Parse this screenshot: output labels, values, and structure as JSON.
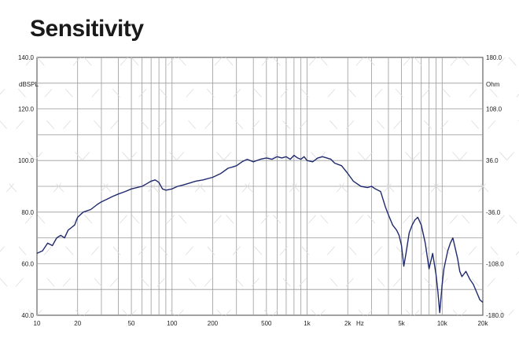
{
  "title": "Sensitivity",
  "chart_data": {
    "type": "line",
    "title": "Sensitivity",
    "x_scale": "log",
    "xlim": [
      10,
      20000
    ],
    "ylim": [
      40,
      140
    ],
    "ylim_right": [
      -180,
      180
    ],
    "grid": true,
    "ylabel": "dBSPL",
    "ylabel_right": "Ohm",
    "xunit": "Hz",
    "line_color": "#1f2a6e",
    "grid_color": "#9a9a9a",
    "x_ticks": [
      {
        "v": 10,
        "label": "10"
      },
      {
        "v": 20,
        "label": "20"
      },
      {
        "v": 50,
        "label": "50"
      },
      {
        "v": 100,
        "label": "100"
      },
      {
        "v": 200,
        "label": "200"
      },
      {
        "v": 500,
        "label": "500"
      },
      {
        "v": 1000,
        "label": "1k"
      },
      {
        "v": 2000,
        "label": "2k"
      },
      {
        "v": 5000,
        "label": "5k"
      },
      {
        "v": 10000,
        "label": "10k"
      },
      {
        "v": 20000,
        "label": "20k"
      }
    ],
    "y_ticks": [
      {
        "v": 40,
        "label": "40.0"
      },
      {
        "v": 60,
        "label": "60.0"
      },
      {
        "v": 80,
        "label": "80.0"
      },
      {
        "v": 100,
        "label": "100.0"
      },
      {
        "v": 120,
        "label": "120.0"
      },
      {
        "v": 140,
        "label": "140.0"
      }
    ],
    "y_ticks_right": [
      {
        "v": -180,
        "label": "-180.0"
      },
      {
        "v": -108,
        "label": "-108.0"
      },
      {
        "v": -36,
        "label": "-36.0"
      },
      {
        "v": 36,
        "label": "36.0"
      },
      {
        "v": 108,
        "label": "108.0"
      },
      {
        "v": 180,
        "label": "180.0"
      }
    ],
    "series": [
      {
        "x": [
          10,
          11,
          12,
          13,
          14,
          15,
          16,
          17,
          18,
          19,
          20,
          22,
          25,
          28,
          30,
          33,
          36,
          40,
          45,
          50,
          55,
          60,
          65,
          70,
          75,
          80,
          85,
          90,
          100,
          110,
          120,
          130,
          150,
          170,
          200,
          230,
          260,
          280,
          300,
          330,
          360,
          400,
          450,
          500,
          550,
          600,
          650,
          700,
          750,
          800,
          850,
          900,
          950,
          1000,
          1100,
          1200,
          1300,
          1400,
          1500,
          1600,
          1800,
          2000,
          2200,
          2500,
          2800,
          3000,
          3200,
          3500,
          3800,
          4000,
          4300,
          4600,
          4800,
          5000,
          5200,
          5400,
          5700,
          6000,
          6300,
          6600,
          7000,
          7500,
          8000,
          8500,
          9000,
          9300,
          9600,
          10000,
          10300,
          10600,
          11000,
          11500,
          12000,
          12500,
          13000,
          13500,
          14000,
          14500,
          15000,
          16000,
          17000,
          18000,
          19000,
          20000
        ],
        "y": [
          64,
          65,
          68,
          67,
          70,
          71,
          70,
          73,
          74,
          75,
          78,
          80,
          81,
          83,
          84,
          85,
          86,
          87,
          88,
          89,
          89.5,
          90,
          91,
          92,
          92.5,
          91.5,
          89,
          88.5,
          89,
          90,
          90.5,
          91,
          92,
          92.5,
          93.5,
          95,
          97,
          97.5,
          98,
          99.5,
          100.5,
          99.5,
          100.5,
          101,
          100.5,
          101.5,
          101,
          101.5,
          100.5,
          102,
          101,
          100.5,
          101.5,
          100,
          99.5,
          101,
          101.5,
          101,
          100.5,
          99,
          98,
          95,
          92,
          90,
          89.5,
          90,
          89,
          88,
          82,
          79,
          75,
          73,
          71,
          67,
          59,
          64,
          72,
          75,
          77,
          78,
          75,
          68,
          58,
          64,
          56,
          49,
          41,
          52,
          58,
          61,
          65,
          68,
          70,
          66,
          62,
          57,
          55,
          56,
          57,
          54,
          52,
          49,
          46,
          45
        ]
      }
    ]
  }
}
